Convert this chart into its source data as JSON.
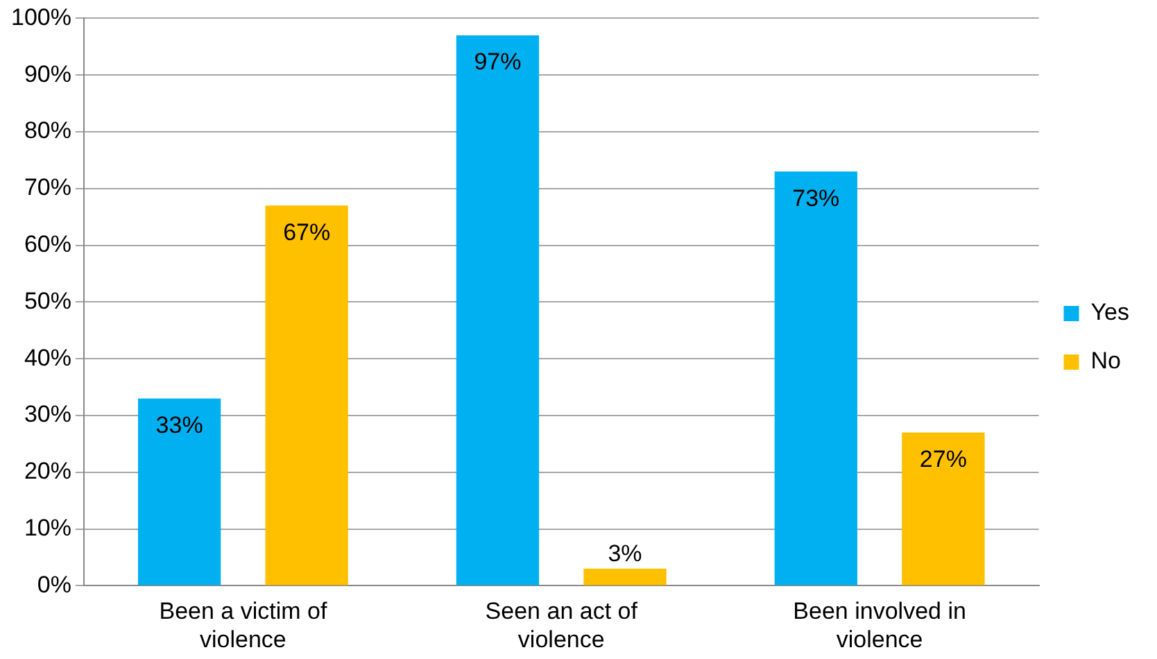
{
  "chart_data": {
    "type": "bar",
    "categories": [
      "Been a victim of violence",
      "Seen an act of violence",
      "Been involved in violence"
    ],
    "series": [
      {
        "name": "Yes",
        "color": "#00b0f0",
        "values": [
          33,
          97,
          73
        ],
        "value_labels": [
          "33%",
          "97%",
          "73%"
        ]
      },
      {
        "name": "No",
        "color": "#ffc000",
        "values": [
          67,
          3,
          27
        ],
        "value_labels": [
          "67%",
          "3%",
          "27%"
        ]
      }
    ],
    "ylim": [
      0,
      100
    ],
    "yticks": [
      {
        "value": 0,
        "label": "0%"
      },
      {
        "value": 10,
        "label": "10%"
      },
      {
        "value": 20,
        "label": "20%"
      },
      {
        "value": 30,
        "label": "30%"
      },
      {
        "value": 40,
        "label": "40%"
      },
      {
        "value": 50,
        "label": "50%"
      },
      {
        "value": 60,
        "label": "60%"
      },
      {
        "value": 70,
        "label": "70%"
      },
      {
        "value": 80,
        "label": "80%"
      },
      {
        "value": 90,
        "label": "90%"
      },
      {
        "value": 100,
        "label": "100%"
      }
    ],
    "grid": "y",
    "legend": "right"
  }
}
